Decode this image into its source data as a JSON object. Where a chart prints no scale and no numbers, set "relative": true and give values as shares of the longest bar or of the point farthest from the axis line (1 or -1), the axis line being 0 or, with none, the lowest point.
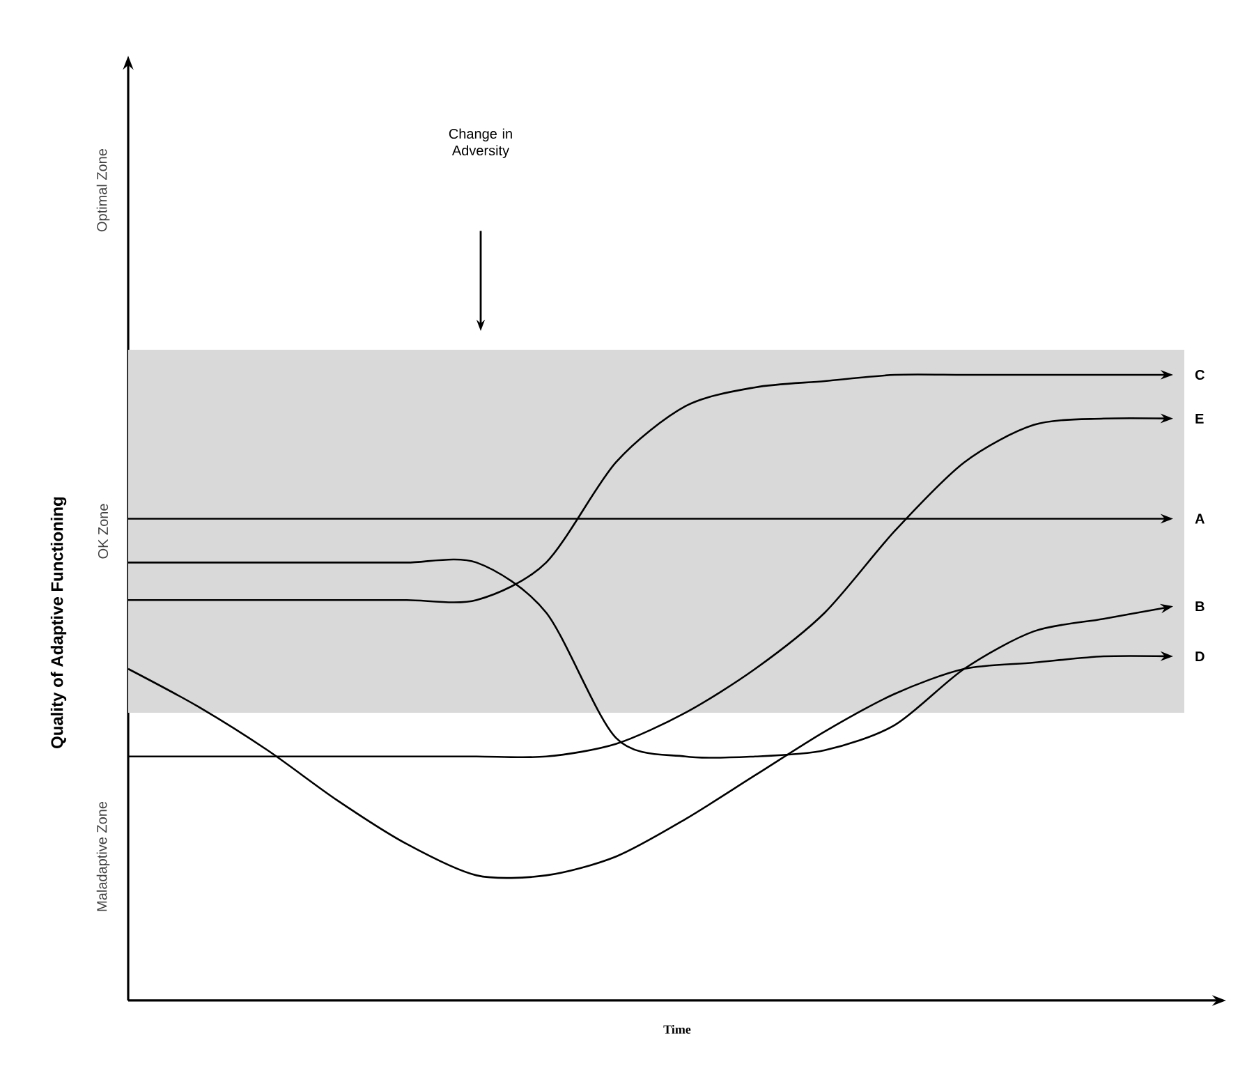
{
  "chart_data": {
    "type": "line",
    "relative": true,
    "xlabel": "Time",
    "ylabel": "Quality of Adaptive Functioning",
    "categories": [
      null,
      null,
      null,
      null,
      null,
      null,
      null,
      null,
      null,
      null,
      null,
      null,
      null,
      null,
      null,
      null
    ],
    "series": [
      {
        "name": "A",
        "color": "#000000",
        "values": [
          0.77,
          0.77,
          0.77,
          0.77,
          0.77,
          0.77,
          0.77,
          0.77,
          0.77,
          0.77,
          0.77,
          0.77,
          0.77,
          0.77,
          0.77,
          0.77
        ]
      },
      {
        "name": "B",
        "color": "#000000",
        "values": [
          0.7,
          0.7,
          0.7,
          0.7,
          0.7,
          0.7,
          0.62,
          0.42,
          0.39,
          0.39,
          0.4,
          0.44,
          0.53,
          0.59,
          0.61,
          0.63
        ]
      },
      {
        "name": "C",
        "color": "#000000",
        "values": [
          0.64,
          0.64,
          0.64,
          0.64,
          0.64,
          0.64,
          0.7,
          0.86,
          0.95,
          0.98,
          0.99,
          1.0,
          1.0,
          1.0,
          1.0,
          1.0
        ]
      },
      {
        "name": "D",
        "color": "#000000",
        "values": [
          0.53,
          0.47,
          0.4,
          0.32,
          0.25,
          0.2,
          0.2,
          0.23,
          0.29,
          0.36,
          0.43,
          0.49,
          0.53,
          0.54,
          0.55,
          0.55
        ]
      },
      {
        "name": "E",
        "color": "#000000",
        "values": [
          0.39,
          0.39,
          0.39,
          0.39,
          0.39,
          0.39,
          0.39,
          0.41,
          0.46,
          0.53,
          0.62,
          0.75,
          0.86,
          0.92,
          0.93,
          0.93
        ]
      }
    ],
    "bands": [
      {
        "axis": "y",
        "from": 0.46,
        "to": 1.04,
        "label": "OK Zone",
        "color": "#d9d9d9"
      }
    ],
    "annotations": [
      "Change in Adversity",
      "Optimal Zone",
      "Maladaptive Zone"
    ],
    "marker": "none",
    "line_style": "solid"
  }
}
